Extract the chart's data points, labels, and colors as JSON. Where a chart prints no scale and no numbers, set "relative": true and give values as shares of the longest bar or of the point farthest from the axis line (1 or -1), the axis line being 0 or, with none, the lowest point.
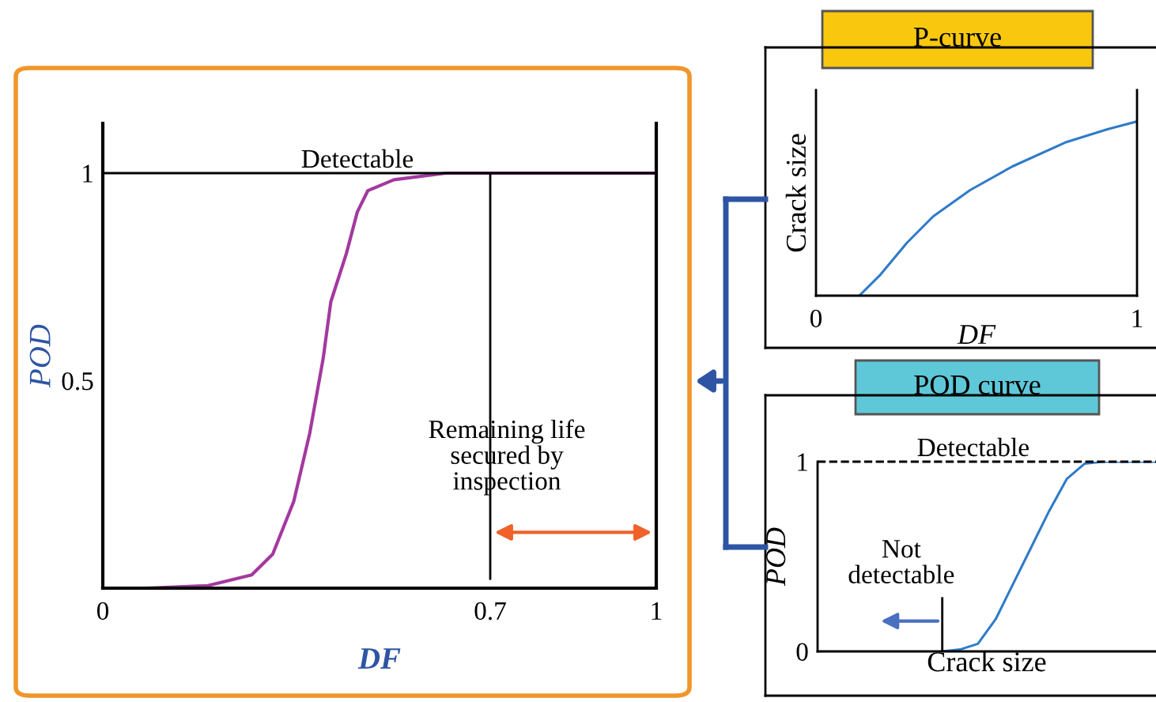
{
  "chart_data": [
    {
      "type": "line",
      "xlabel": "DF",
      "ylabel": "POD",
      "x": [
        0.079,
        0.19,
        0.269,
        0.307,
        0.345,
        0.374,
        0.398,
        0.412,
        0.44,
        0.46,
        0.479,
        0.526,
        0.62,
        0.76,
        1.0
      ],
      "series": [
        {
          "color": "#a3399f",
          "values": [
            0,
            0.006,
            0.032,
            0.082,
            0.209,
            0.374,
            0.552,
            0.69,
            0.806,
            0.907,
            0.958,
            0.984,
            1,
            1,
            1
          ]
        }
      ],
      "xlim": [
        0,
        1
      ],
      "ylim": [
        0,
        1.12
      ],
      "xticks": [
        0,
        0.7,
        1
      ],
      "yticks": [
        0.5,
        1
      ],
      "grid": false,
      "ref_lines": [
        {
          "axis": "y",
          "value": 1,
          "label": "Detectable",
          "color": "#000000"
        },
        {
          "axis": "x",
          "value": 0.7,
          "color": "#000000"
        }
      ],
      "annotations": [
        "Remaining life\nsecured by\ninspection"
      ]
    },
    {
      "type": "line",
      "title": "P-curve",
      "xlabel": "DF",
      "ylabel": "Crack size",
      "relative": true,
      "x": [
        0.135,
        0.201,
        0.283,
        0.365,
        0.48,
        0.612,
        0.776,
        0.908,
        1.0
      ],
      "series": [
        {
          "color": "#2f7bc8",
          "values": [
            0,
            0.121,
            0.303,
            0.455,
            0.606,
            0.742,
            0.879,
            0.955,
            1.0
          ]
        }
      ],
      "xlim": [
        0,
        1
      ],
      "xticks": [
        0,
        1
      ],
      "tick_labels": "x",
      "grid": false
    },
    {
      "type": "line",
      "title": "POD curve",
      "xlabel": "Crack size",
      "ylabel": "POD",
      "categories": [
        null,
        null,
        null,
        null,
        null,
        null,
        null,
        null,
        null,
        null,
        null,
        null,
        null,
        null,
        null,
        null,
        null,
        null,
        null,
        null
      ],
      "series": [
        {
          "color": "#2f7bc8",
          "values": [
            null,
            null,
            null,
            null,
            null,
            null,
            null,
            0,
            0.01,
            0.04,
            0.17,
            0.36,
            0.55,
            0.74,
            0.91,
            0.99,
            1,
            1,
            1,
            1
          ]
        }
      ],
      "ylim": [
        0,
        1
      ],
      "yticks": [
        0,
        1
      ],
      "tick_labels": "y",
      "grid": false,
      "ref_lines": [
        {
          "axis": "y",
          "value": 1,
          "label": "Detectable",
          "line_style": "dashed"
        }
      ],
      "annotations": [
        "Not\ndetectable"
      ]
    }
  ]
}
